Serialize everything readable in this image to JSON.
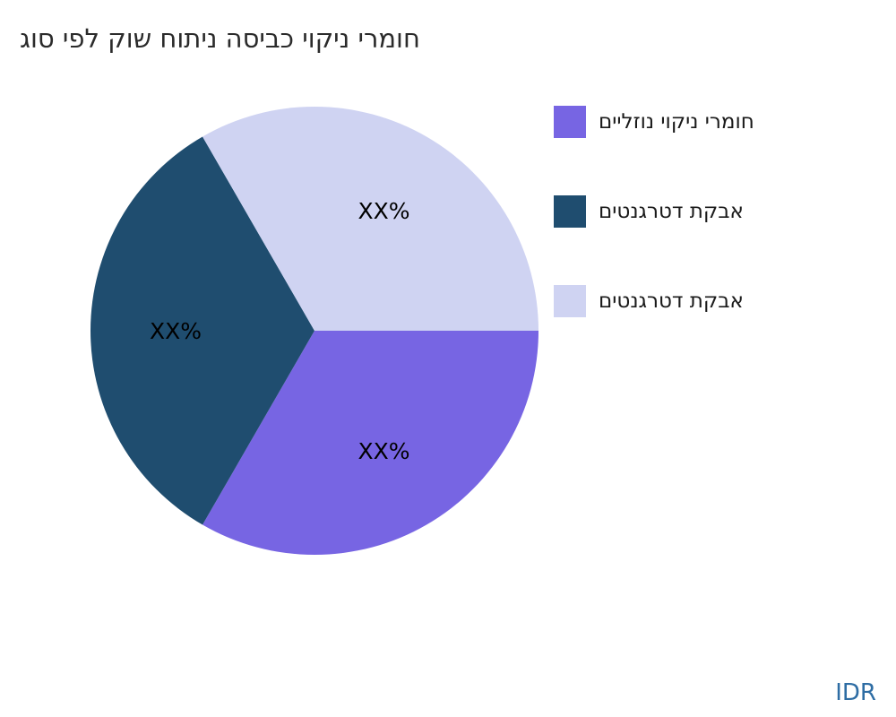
{
  "chart_data": {
    "type": "pie",
    "title": "חומרי ניקוי כביסה ניתוח שוק לפי סוג",
    "start_angle_deg": 0,
    "direction": "clockwise",
    "legend_position": "right",
    "label_radius_fraction": 0.62,
    "slices": [
      {
        "label": "חומרי ניקוי נוזליים",
        "value": 33.33,
        "data_label": "XX%",
        "color": "#7765e3"
      },
      {
        "label": "אבקת דטרגנטים",
        "value": 33.34,
        "data_label": "XX%",
        "color": "#1f4d6f"
      },
      {
        "label": "אבקת דטרגנטים",
        "value": 33.33,
        "data_label": "XX%",
        "color": "#cfd3f2"
      }
    ],
    "slice_label_color": "#000000"
  },
  "footer": {
    "currency": "IDR"
  }
}
